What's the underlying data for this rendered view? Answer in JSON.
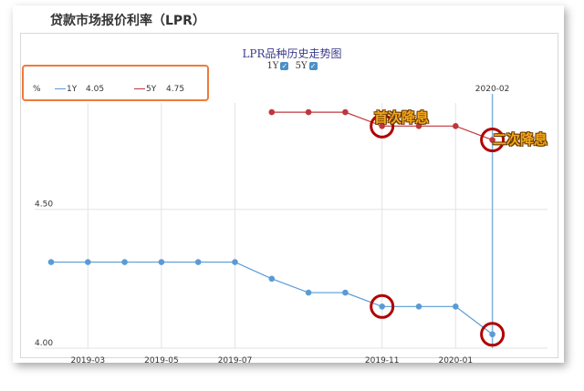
{
  "page": {
    "title": "贷款市场报价利率（LPR）"
  },
  "chart_data": {
    "type": "line",
    "title": "LPR品种历史走势图",
    "series_toggles": [
      {
        "label": "1Y",
        "checked_mark": "✓"
      },
      {
        "label": "5Y",
        "checked_mark": "✓"
      }
    ],
    "legend": {
      "unit": "%",
      "current_date": "2020-02",
      "entries": [
        {
          "name": "1Y",
          "value": "4.05"
        },
        {
          "name": "5Y",
          "value": "4.75"
        }
      ]
    },
    "x": [
      "2019-02",
      "2019-03",
      "2019-04",
      "2019-05",
      "2019-06",
      "2019-07",
      "2019-08",
      "2019-09",
      "2019-10",
      "2019-11",
      "2019-12",
      "2020-01",
      "2020-02"
    ],
    "x_tick_labels": [
      "2019-03",
      "2019-05",
      "2019-07",
      "2019-11",
      "2020-01"
    ],
    "y_tick_labels": [
      "4.00",
      "4.50"
    ],
    "ylim": [
      4.0,
      4.87
    ],
    "series": [
      {
        "name": "1Y",
        "color": "#5a9bd5",
        "values": [
          4.31,
          4.31,
          4.31,
          4.31,
          4.31,
          4.31,
          4.25,
          4.2,
          4.2,
          4.15,
          4.15,
          4.15,
          4.05
        ]
      },
      {
        "name": "5Y",
        "color": "#c0363c",
        "values": [
          null,
          null,
          null,
          null,
          null,
          null,
          4.85,
          4.85,
          4.85,
          4.8,
          4.8,
          4.8,
          4.75
        ]
      }
    ],
    "annotations": [
      {
        "text": "首次降息",
        "color": "#f2a81a"
      },
      {
        "text": "二次降息",
        "color": "#f2a81a"
      }
    ],
    "marker_ring_color": "#b00000",
    "grid": true
  }
}
